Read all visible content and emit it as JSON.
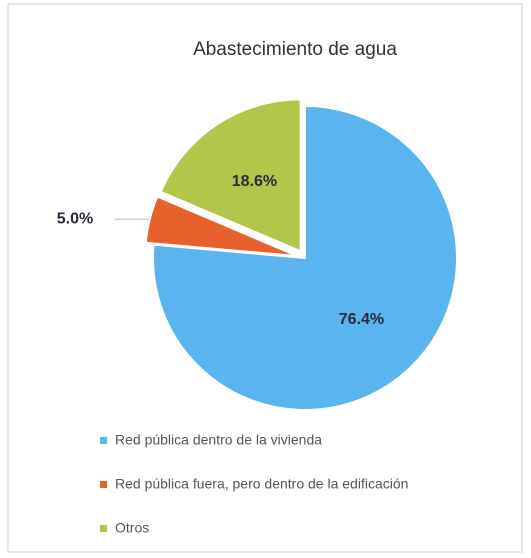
{
  "chart_data": {
    "type": "pie",
    "title": "Abastecimiento  de agua",
    "categories": [
      "Red pública dentro de la vivienda",
      "Red pública fuera, pero dentro de la edificación",
      "Otros"
    ],
    "values": [
      76.4,
      5.0,
      18.6
    ],
    "value_labels": [
      "76.4%",
      "5.0%",
      "18.6%"
    ],
    "colors": [
      "#5ab4f0",
      "#e8602c",
      "#b3c64a"
    ],
    "legend": "bottom"
  }
}
